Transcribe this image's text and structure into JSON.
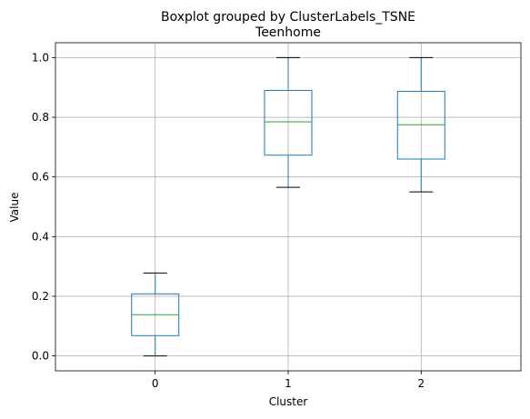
{
  "chart_data": {
    "type": "boxplot",
    "suptitle": "Boxplot grouped by ClusterLabels_TSNE",
    "title": "Teenhome",
    "xlabel": "Cluster",
    "ylabel": "Value",
    "categories": [
      "0",
      "1",
      "2"
    ],
    "ylim": [
      -0.05,
      1.05
    ],
    "yticks": [
      0.0,
      0.2,
      0.4,
      0.6,
      0.8,
      1.0
    ],
    "ytick_labels": [
      "0.0",
      "0.2",
      "0.4",
      "0.6",
      "0.8",
      "1.0"
    ],
    "grid": true,
    "boxes": [
      {
        "category": "0",
        "whisker_low": 0.0,
        "q1": 0.068,
        "median": 0.138,
        "q3": 0.208,
        "whisker_high": 0.278
      },
      {
        "category": "1",
        "whisker_low": 0.565,
        "q1": 0.673,
        "median": 0.785,
        "q3": 0.89,
        "whisker_high": 1.0
      },
      {
        "category": "2",
        "whisker_low": 0.55,
        "q1": 0.66,
        "median": 0.775,
        "q3": 0.887,
        "whisker_high": 1.0
      }
    ],
    "colors": {
      "box": "#1f77b4",
      "median": "#2ca02c",
      "cap": "#000000",
      "grid": "#b0b0b0"
    }
  }
}
